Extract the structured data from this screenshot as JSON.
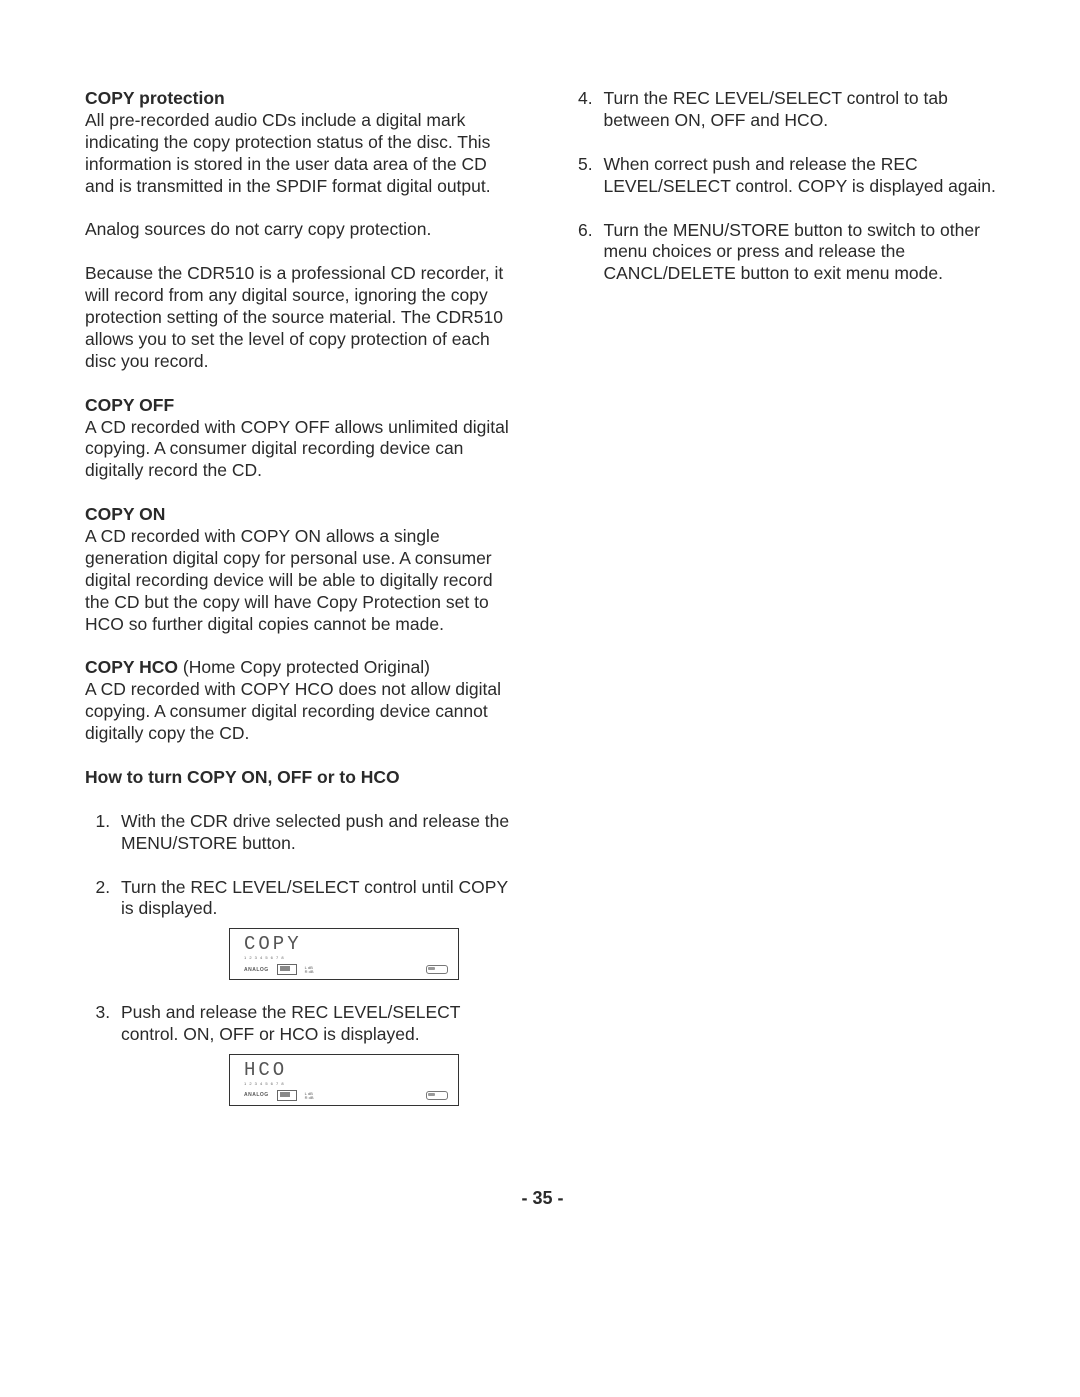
{
  "left": {
    "copy_protection": {
      "heading": "COPY protection",
      "p1": "All pre-recorded audio CDs include a digital mark indicating the copy protection status of the disc. This information is stored in the user data area of the CD and is transmitted in the SPDIF format digital output.",
      "p2": "Analog sources do not carry copy protection.",
      "p3": "Because the CDR510 is a professional CD recorder, it will record from any digital source, ignoring the copy protection setting of the source material. The CDR510 allows you to set the level of copy protection of each disc you record."
    },
    "copy_off": {
      "heading": "COPY OFF",
      "p1": "A CD recorded with COPY OFF allows unlimited digital copying. A consumer digital recording device can digitally record the CD."
    },
    "copy_on": {
      "heading": "COPY ON",
      "p1": "A CD recorded with COPY ON allows a single generation digital copy for personal use.  A consumer digital recording device will be able to digitally record the CD but the copy will have Copy Protection set to HCO so further digital copies cannot be made."
    },
    "copy_hco": {
      "heading": "COPY HCO",
      "suffix": " (Home Copy protected Original)",
      "p1": "A CD recorded with COPY HCO does not allow digital copying. A consumer digital recording device cannot digitally copy the CD."
    },
    "howto_heading": "How to turn COPY ON, OFF or to HCO",
    "steps": {
      "s1": "With the CDR drive selected push and release the MENU/STORE button.",
      "s2": "Turn the REC LEVEL/SELECT control until COPY is displayed.",
      "s3": "Push and release the REC LEVEL/SELECT control. ON, OFF or HCO is displayed."
    },
    "lcd1": {
      "main": "COPY",
      "sub": "1 2 3 4 5 6 7 8",
      "analog": "ANALOG",
      "lr_top": "L dB",
      "lr_bot": "R dB"
    },
    "lcd2": {
      "main": "HCO",
      "sub": "1 2 3 4 5 6 7 8",
      "analog": "ANALOG",
      "lr_top": "L dB",
      "lr_bot": "R dB"
    }
  },
  "right": {
    "s4": "Turn the REC LEVEL/SELECT control to tab between ON, OFF and HCO.",
    "s5": "When correct push and release the REC LEVEL/SELECT control. COPY is displayed again.",
    "s6": "Turn the MENU/STORE button to switch to other menu choices or press and release the CANCL/DELETE button to exit menu mode."
  },
  "page_number": "- 35 -"
}
